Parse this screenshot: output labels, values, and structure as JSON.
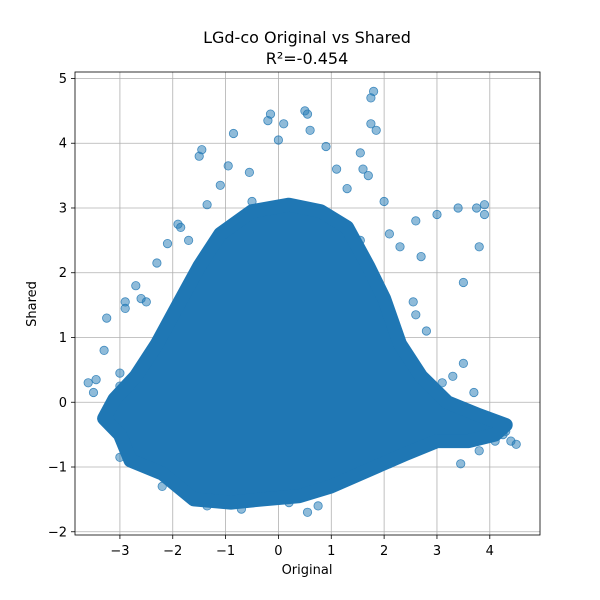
{
  "chart_data": {
    "type": "scatter",
    "title": "LGd-co Original vs Shared",
    "subtitle": "R²=-0.454",
    "xlabel": "Original",
    "ylabel": "Shared",
    "xlim": [
      -3.85,
      4.95
    ],
    "ylim": [
      -2.05,
      5.1
    ],
    "xticks": [
      -3,
      -2,
      -1,
      0,
      1,
      2,
      3,
      4
    ],
    "xtick_labels": [
      "−3",
      "−2",
      "−1",
      "0",
      "1",
      "2",
      "3",
      "4"
    ],
    "yticks": [
      -2,
      -1,
      0,
      1,
      2,
      3,
      4,
      5
    ],
    "ytick_labels": [
      "−2",
      "−1",
      "0",
      "1",
      "2",
      "3",
      "4",
      "5"
    ],
    "grid": true,
    "marker_color": "#1f77b4",
    "marker_alpha": 0.5,
    "series": [
      {
        "x": [
          -3.6,
          -3.5,
          -3.45,
          -3.3,
          -3.25,
          -3.0,
          -3.0,
          -2.95,
          -2.9,
          -2.9,
          -3.2,
          -3.0,
          -2.7,
          -2.6,
          -2.5,
          -2.3,
          -2.1,
          -1.9,
          -1.85,
          -1.7,
          -1.5,
          -1.45,
          -1.35,
          -1.1,
          -0.95,
          -0.85,
          -0.55,
          -0.2,
          -0.15,
          0.0,
          0.1,
          0.5,
          0.55,
          0.6,
          0.9,
          1.1,
          1.3,
          1.55,
          1.6,
          1.7,
          1.75,
          1.75,
          1.8,
          1.85,
          2.0,
          2.1,
          2.3,
          2.6,
          2.7,
          3.0,
          3.4,
          3.5,
          3.75,
          3.8,
          3.9,
          3.9,
          2.8,
          2.55,
          2.6,
          3.1,
          3.3,
          3.5,
          3.7,
          3.95,
          4.1,
          4.25,
          4.4,
          4.5,
          4.3,
          3.8,
          3.45,
          2.95,
          2.4,
          2.2,
          -0.4,
          -0.9,
          -1.35,
          -1.6,
          -2.2,
          -2.8,
          0.55,
          0.75,
          2.1,
          0.2,
          -0.7,
          -1.9,
          1.55,
          0.95,
          -0.5
        ],
        "y": [
          0.3,
          0.15,
          0.35,
          0.8,
          1.3,
          0.45,
          0.25,
          0.05,
          1.55,
          1.45,
          -0.3,
          -0.85,
          1.8,
          1.6,
          1.55,
          2.15,
          2.45,
          2.75,
          2.7,
          2.5,
          3.8,
          3.9,
          3.05,
          3.35,
          3.65,
          4.15,
          3.55,
          4.35,
          4.45,
          4.05,
          4.3,
          4.5,
          4.45,
          4.2,
          3.95,
          3.6,
          3.3,
          3.85,
          3.6,
          3.5,
          4.7,
          4.3,
          4.8,
          4.2,
          3.1,
          2.6,
          2.4,
          2.8,
          2.25,
          2.9,
          3.0,
          1.85,
          3.0,
          2.4,
          2.9,
          3.05,
          1.1,
          1.55,
          1.35,
          0.3,
          0.4,
          0.6,
          0.15,
          -0.4,
          -0.6,
          -0.5,
          -0.6,
          -0.65,
          -0.45,
          -0.75,
          -0.95,
          -0.55,
          -0.25,
          -0.85,
          -1.5,
          -1.55,
          -1.6,
          -1.45,
          -1.3,
          -0.9,
          -1.7,
          -1.6,
          -0.95,
          -1.55,
          -1.65,
          -1.05,
          2.5,
          2.65,
          3.1
        ]
      }
    ]
  }
}
